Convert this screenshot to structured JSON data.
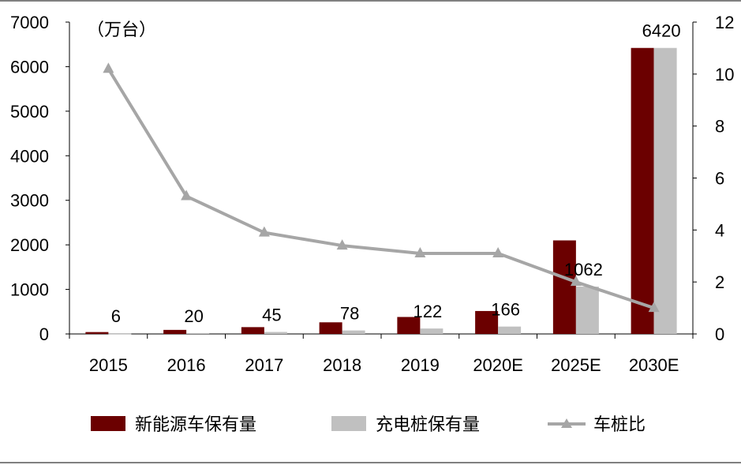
{
  "chart_data": {
    "type": "bar",
    "unit_label": "（万台）",
    "categories": [
      "2015",
      "2016",
      "2017",
      "2018",
      "2019",
      "2020E",
      "2025E",
      "2030E"
    ],
    "series": [
      {
        "name": "新能源车保有量",
        "axis": "left",
        "color": "#6b0000",
        "values": [
          42,
          91,
          153,
          261,
          381,
          515,
          2100,
          6420
        ]
      },
      {
        "name": "充电桩保有量",
        "axis": "left",
        "color": "#c0c0c0",
        "values": [
          6,
          20,
          45,
          78,
          122,
          166,
          1062,
          6420
        ]
      },
      {
        "name": "车桩比",
        "type": "line",
        "axis": "right",
        "color": "#a6a6a6",
        "marker": "triangle",
        "values": [
          10.2,
          5.3,
          3.9,
          3.4,
          3.1,
          3.1,
          2.0,
          1.0
        ]
      }
    ],
    "data_labels": [
      "6",
      "20",
      "45",
      "78",
      "122",
      "166",
      "1062",
      "6420"
    ],
    "y_left": {
      "min": 0,
      "max": 7000,
      "ticks": [
        0,
        1000,
        2000,
        3000,
        4000,
        5000,
        6000,
        7000
      ]
    },
    "y_right": {
      "min": 0,
      "max": 12,
      "ticks": [
        0,
        2,
        4,
        6,
        8,
        10,
        12
      ]
    },
    "grid": false,
    "legend_position": "bottom"
  }
}
